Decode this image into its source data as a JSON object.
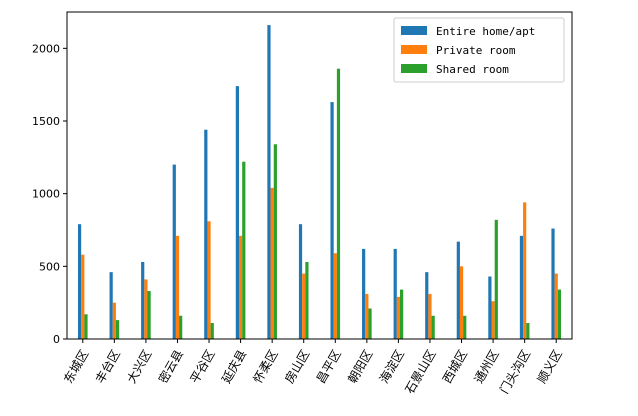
{
  "chart_data": {
    "type": "bar",
    "categories": [
      "东城区",
      "丰台区",
      "大兴区",
      "密云县",
      "平谷区",
      "延庆县",
      "怀柔区",
      "房山区",
      "昌平区",
      "朝阳区",
      "海淀区",
      "石景山区",
      "西城区",
      "通州区",
      "门头沟区",
      "顺义区"
    ],
    "series": [
      {
        "name": "Entire home/apt",
        "color": "#1f77b4",
        "values": [
          790,
          460,
          530,
          1200,
          1440,
          1740,
          2160,
          790,
          1630,
          620,
          620,
          460,
          670,
          430,
          710,
          760
        ]
      },
      {
        "name": "Private room",
        "color": "#ff7f0e",
        "values": [
          580,
          250,
          410,
          710,
          810,
          710,
          1040,
          450,
          590,
          310,
          290,
          310,
          500,
          260,
          940,
          450
        ]
      },
      {
        "name": "Shared room",
        "color": "#2ca02c",
        "values": [
          170,
          130,
          330,
          160,
          110,
          1220,
          1340,
          530,
          1860,
          210,
          340,
          160,
          160,
          820,
          110,
          340
        ]
      }
    ],
    "ylim": [
      0,
      2250
    ],
    "yticks": [
      "0",
      "500",
      "1000",
      "1500",
      "2000"
    ],
    "legend_position": "top-right",
    "grid": false
  }
}
